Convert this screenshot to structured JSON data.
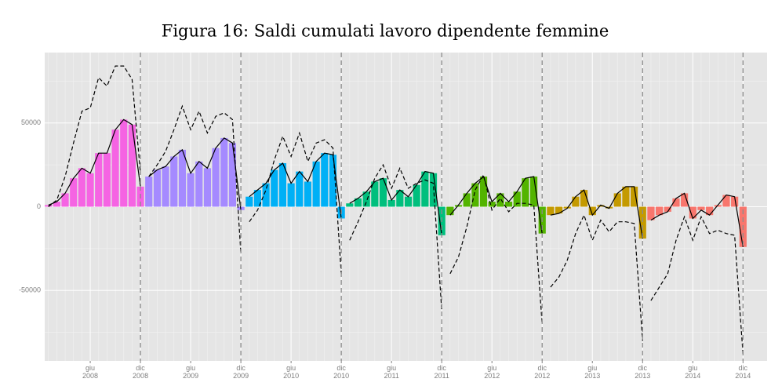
{
  "chart_data": {
    "type": "bar",
    "title": "Figura 16: Saldi cumulati lavoro dipendente femmine",
    "categories": [
      null,
      null,
      null,
      null,
      null,
      "giu\n2008",
      null,
      null,
      null,
      null,
      null,
      "dic\n2008",
      null,
      null,
      null,
      null,
      null,
      "giu\n2009",
      null,
      null,
      null,
      null,
      null,
      "dic\n2009",
      null,
      null,
      null,
      null,
      null,
      "giu\n2010",
      null,
      null,
      null,
      null,
      null,
      "dic\n2010",
      null,
      null,
      null,
      null,
      null,
      "giu\n2011",
      null,
      null,
      null,
      null,
      null,
      "dic\n2011",
      null,
      null,
      null,
      null,
      null,
      "giu\n2012",
      null,
      null,
      null,
      null,
      null,
      "dic\n2012",
      null,
      null,
      null,
      null,
      null,
      "giu\n2013",
      null,
      null,
      null,
      null,
      null,
      "dic\n2013",
      null,
      null,
      null,
      null,
      null,
      "giu\n2014",
      null,
      null,
      null,
      null,
      null,
      "dic\n2014"
    ],
    "series": [
      {
        "colors": [
          "#f564e3",
          "#a58aff",
          "#00b0f6",
          "#00bf7d",
          "#53b400",
          "#c49a00",
          "#f8766d"
        ],
        "line": true,
        "line_color": "#000000",
        "values": [
          1000,
          3000,
          8000,
          17000,
          23000,
          20000,
          32000,
          32000,
          46000,
          52000,
          49000,
          12000,
          18000,
          22000,
          24000,
          30000,
          34000,
          20000,
          27000,
          23000,
          35000,
          41000,
          38000,
          -2000,
          6000,
          10000,
          14000,
          22000,
          26000,
          14000,
          21000,
          15000,
          27000,
          32000,
          31000,
          -7000,
          2000,
          5000,
          9000,
          15000,
          17000,
          4000,
          10000,
          6000,
          13000,
          21000,
          20000,
          -17000,
          -5000,
          1000,
          8000,
          14000,
          18000,
          3000,
          8000,
          3000,
          9000,
          17000,
          18000,
          -16000,
          -5000,
          -4000,
          -1000,
          6000,
          10000,
          -5000,
          1000,
          -1000,
          8000,
          12000,
          12000,
          -19000,
          -8000,
          -5000,
          -3000,
          5000,
          8000,
          -7000,
          -2000,
          -5000,
          1000,
          7000,
          6000,
          -24000
        ]
      },
      {
        "color": "#000000",
        "dashed": true,
        "values": [
          0,
          4000,
          18000,
          38000,
          57000,
          59000,
          77000,
          72000,
          84000,
          84000,
          76000,
          20000,
          18000,
          25000,
          33000,
          46000,
          60000,
          46000,
          57000,
          44000,
          54000,
          56000,
          52000,
          -28000,
          -9000,
          -2000,
          10000,
          28000,
          42000,
          30000,
          44000,
          27000,
          38000,
          40000,
          35000,
          -40000,
          -20000,
          -9000,
          3000,
          17000,
          25000,
          11000,
          23000,
          11000,
          14000,
          16000,
          14000,
          -62000,
          -40000,
          -30000,
          -12000,
          10000,
          19000,
          -2000,
          5000,
          -3000,
          2000,
          2000,
          1000,
          -70000,
          -48000,
          -42000,
          -32000,
          -16000,
          -5000,
          -20000,
          -8000,
          -15000,
          -9000,
          -9000,
          -10000,
          -80000,
          -56000,
          -48000,
          -40000,
          -20000,
          -6000,
          -20000,
          -6000,
          -16000,
          -14000,
          -16000,
          -17000,
          -88000
        ]
      }
    ],
    "ylim": [
      -92000,
      92000
    ],
    "yticks": [
      -50000,
      0,
      50000
    ],
    "grid": true
  }
}
